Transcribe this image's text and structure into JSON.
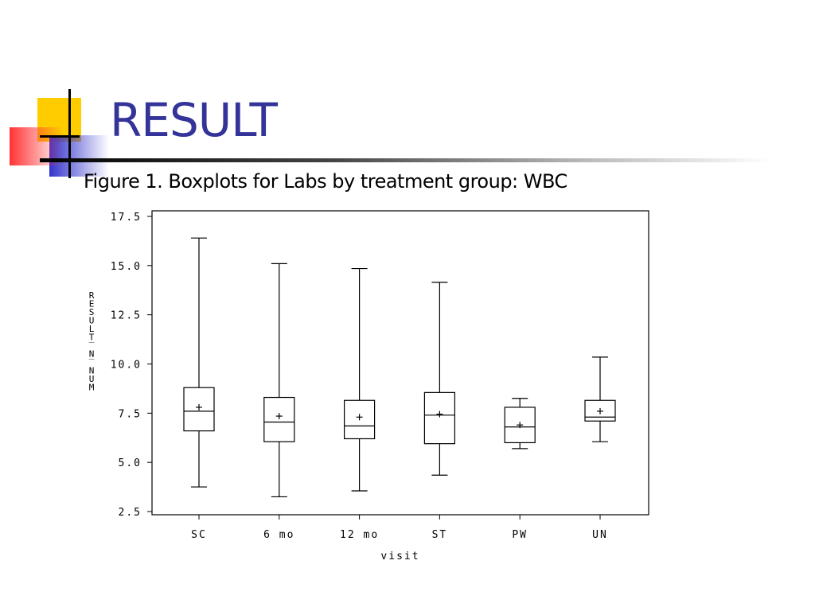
{
  "slide": {
    "title": "RESULT",
    "figure_caption": "Figure 1.  Boxplots for Labs by treatment group: WBC",
    "colors": {
      "title": "#333399",
      "deco_yellow": "#ffcc00",
      "deco_blue": "#3333cc",
      "deco_red": "#ff3333"
    }
  },
  "chart_data": {
    "type": "boxplot",
    "xlabel": "visit",
    "ylabel": "RESULT_N_NUM",
    "ylim": [
      2.5,
      17.5
    ],
    "yticks": [
      "2.5",
      "5.0",
      "7.5",
      "10.0",
      "12.5",
      "15.0",
      "17.5"
    ],
    "grid": false,
    "categories": [
      "SC",
      "6 mo",
      "12 mo",
      "ST",
      "PW",
      "UN"
    ],
    "boxes": [
      {
        "min": 3.75,
        "q1": 6.6,
        "median": 7.6,
        "q3": 8.8,
        "max": 16.4,
        "mean": 7.8
      },
      {
        "min": 3.25,
        "q1": 6.05,
        "median": 7.05,
        "q3": 8.3,
        "max": 15.1,
        "mean": 7.35
      },
      {
        "min": 3.55,
        "q1": 6.2,
        "median": 6.85,
        "q3": 8.15,
        "max": 14.85,
        "mean": 7.3
      },
      {
        "min": 4.35,
        "q1": 5.95,
        "median": 7.4,
        "q3": 8.55,
        "max": 14.15,
        "mean": 7.45
      },
      {
        "min": 5.7,
        "q1": 6.0,
        "median": 6.8,
        "q3": 7.8,
        "max": 8.25,
        "mean": 6.9
      },
      {
        "min": 6.05,
        "q1": 7.1,
        "median": 7.3,
        "q3": 8.15,
        "max": 10.35,
        "mean": 7.6
      }
    ]
  }
}
